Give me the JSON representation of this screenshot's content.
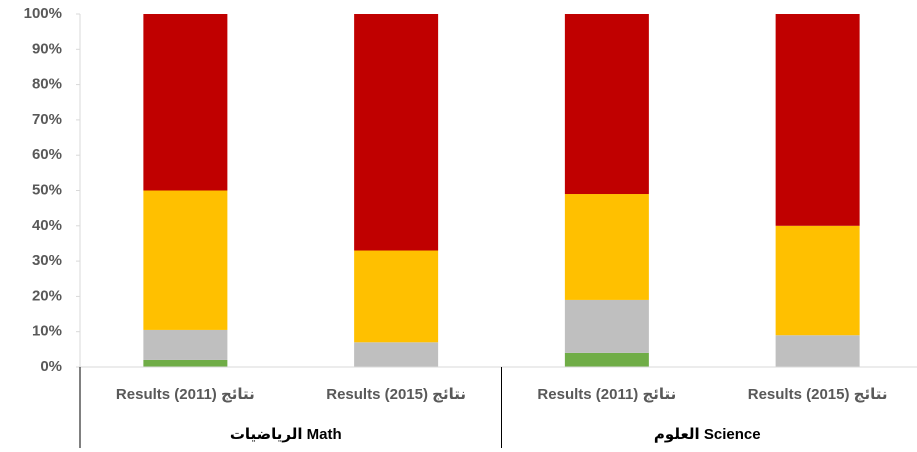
{
  "chart_data": {
    "type": "stacked_bar",
    "categories": [
      "Results (2011) نتائج",
      "Results (2015) نتائج",
      "Results (2011) نتائج",
      "Results (2015) نتائج"
    ],
    "groups": [
      "الرياضيات Math",
      "العلوم Science"
    ],
    "series": [
      {
        "color": "#70ad47",
        "values": [
          2,
          0,
          4,
          0
        ]
      },
      {
        "color": "#bfbfbf",
        "values": [
          8.5,
          7,
          15,
          9
        ]
      },
      {
        "color": "#ffc000",
        "values": [
          39.5,
          26,
          30,
          31
        ]
      },
      {
        "color": "#c00000",
        "values": [
          50,
          67,
          51,
          60
        ]
      }
    ],
    "ylim": [
      0,
      100
    ],
    "yticks": [
      {
        "value": 0,
        "label": "0%"
      },
      {
        "value": 10,
        "label": "10%"
      },
      {
        "value": 20,
        "label": "20%"
      },
      {
        "value": 30,
        "label": "30%"
      },
      {
        "value": 40,
        "label": "40%"
      },
      {
        "value": 50,
        "label": "50%"
      },
      {
        "value": 60,
        "label": "60%"
      },
      {
        "value": 70,
        "label": "70%"
      },
      {
        "value": 80,
        "label": "80%"
      },
      {
        "value": 90,
        "label": "90%"
      },
      {
        "value": 100,
        "label": "100%"
      }
    ]
  }
}
